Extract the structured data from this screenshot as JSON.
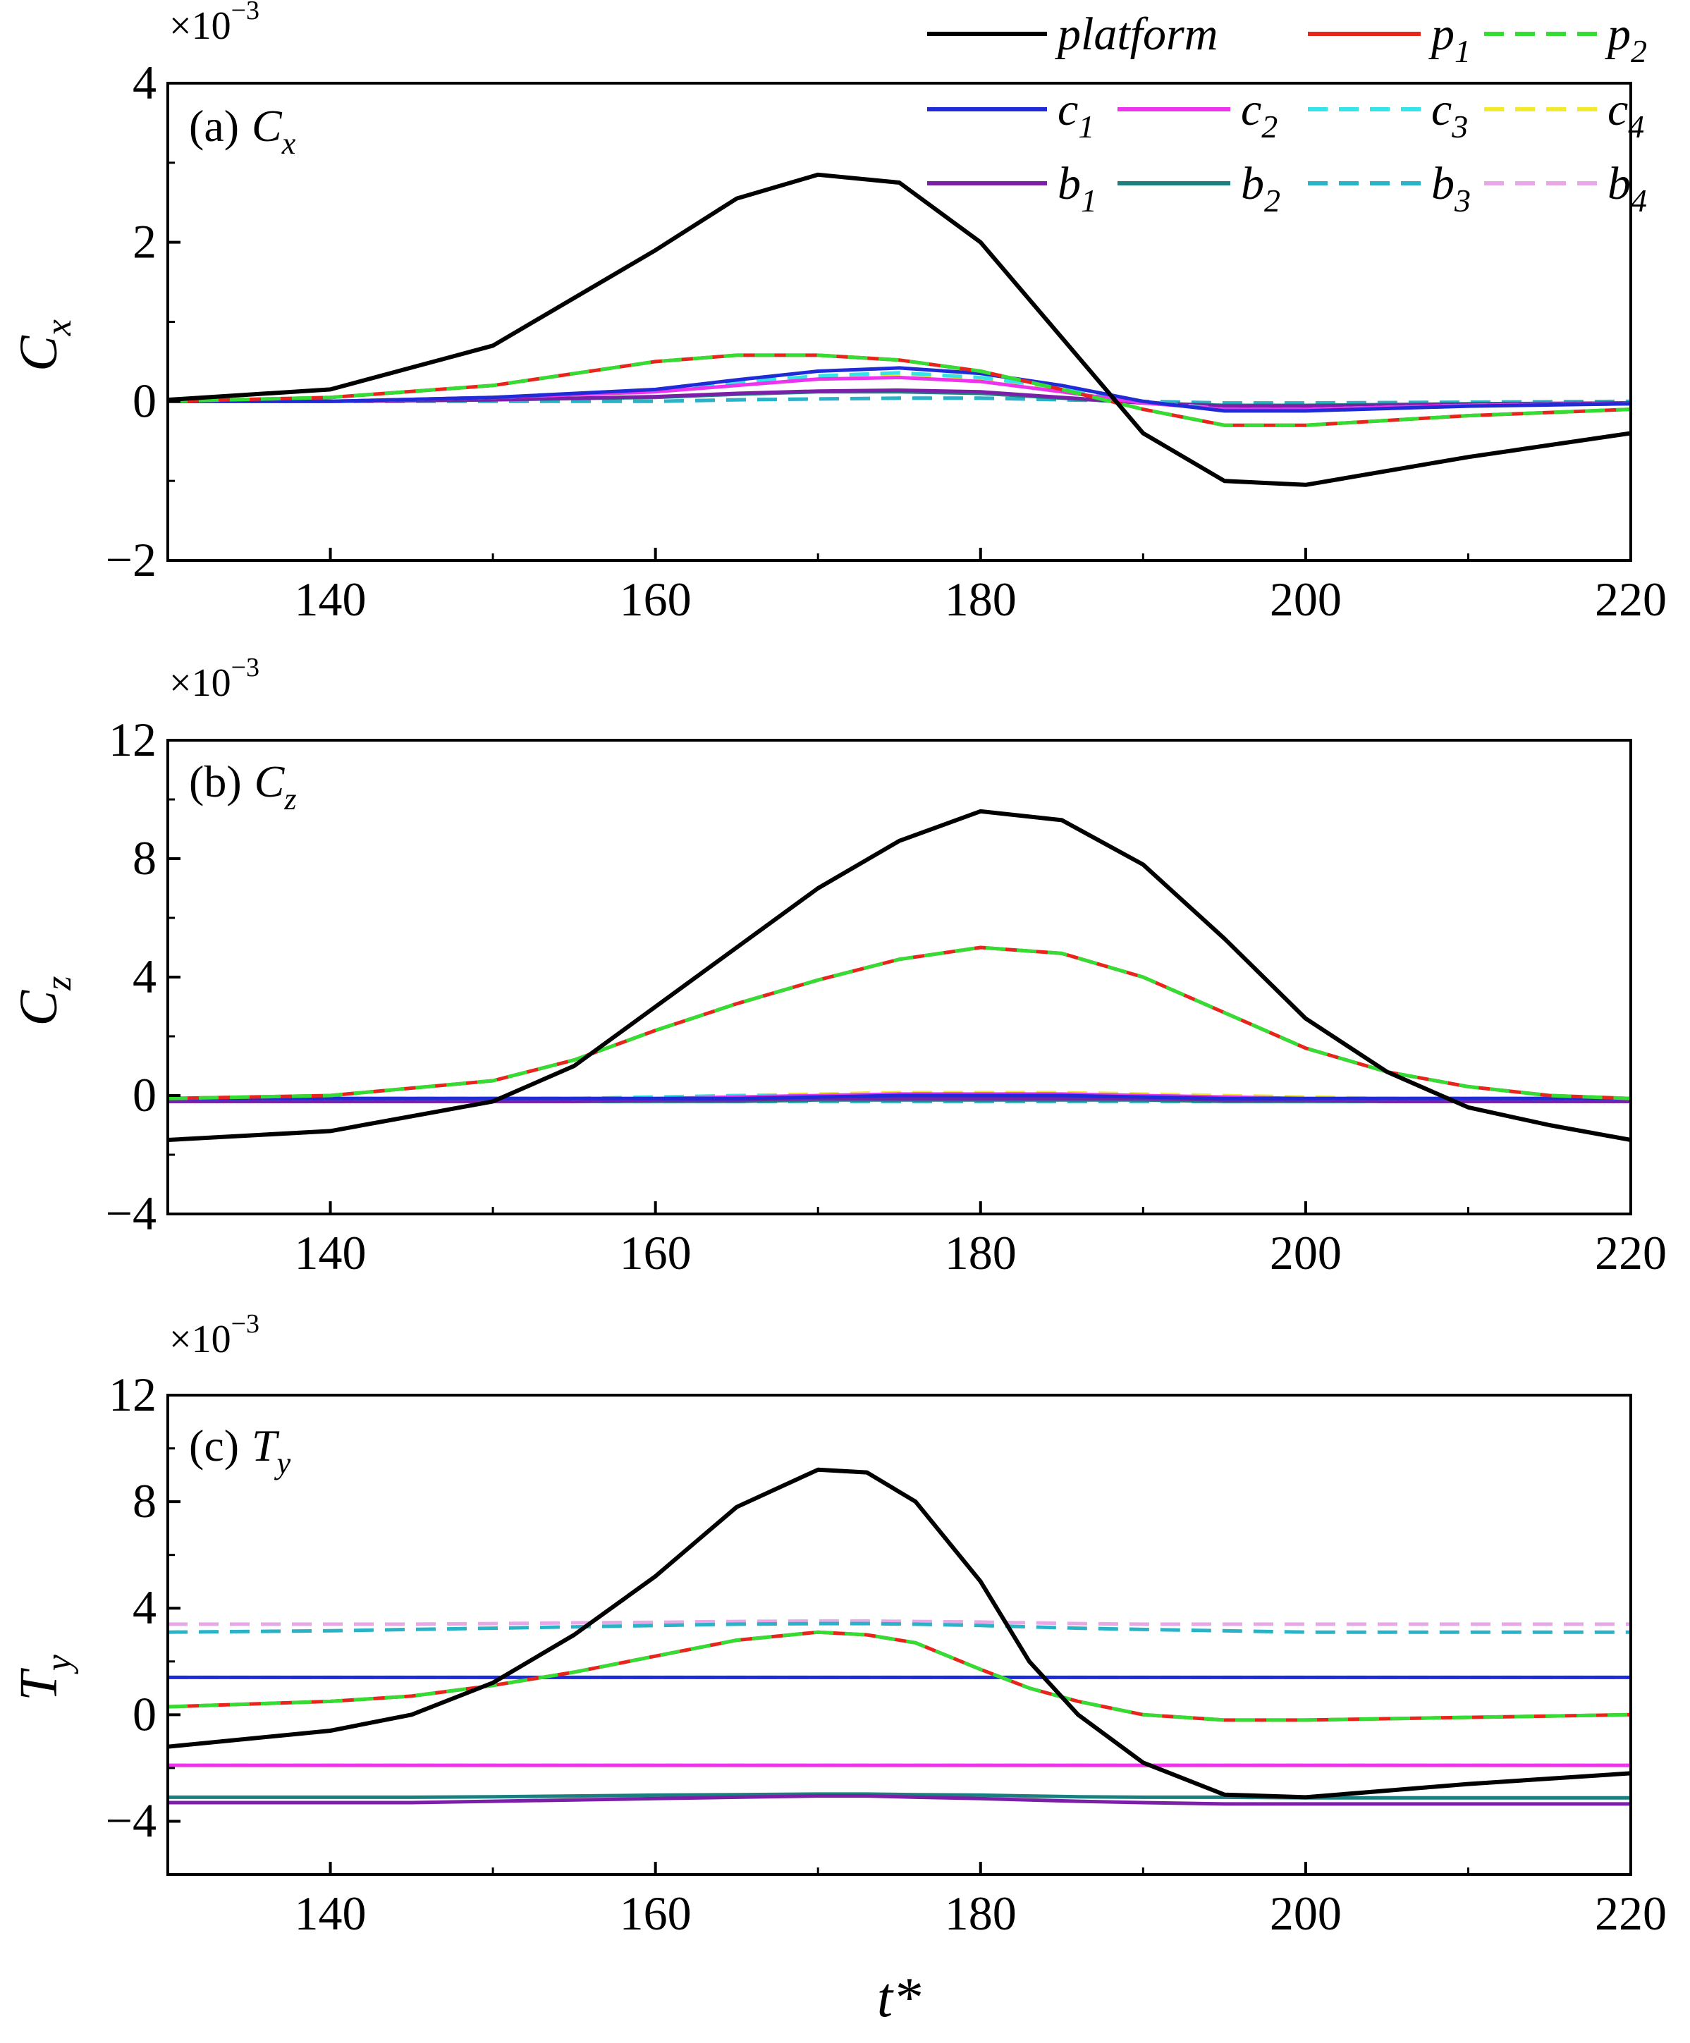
{
  "figure": {
    "xlabel": "t*",
    "legend_entries": [
      {
        "id": "platform",
        "name": "platform",
        "sub": "",
        "color": "#000000",
        "dash": false
      },
      {
        "id": "p1",
        "name": "p",
        "sub": "1",
        "color": "#e8251d",
        "dash": false
      },
      {
        "id": "p2",
        "name": "p",
        "sub": "2",
        "color": "#33dd33",
        "dash": true
      },
      {
        "id": "c1",
        "name": "c",
        "sub": "1",
        "color": "#1f2bd6",
        "dash": false
      },
      {
        "id": "c2",
        "name": "c",
        "sub": "2",
        "color": "#ee33ee",
        "dash": false
      },
      {
        "id": "c3",
        "name": "c",
        "sub": "3",
        "color": "#33e4e8",
        "dash": true
      },
      {
        "id": "c4",
        "name": "c",
        "sub": "4",
        "color": "#f2ea2a",
        "dash": true
      },
      {
        "id": "b1",
        "name": "b",
        "sub": "1",
        "color": "#7b1fa8",
        "dash": false
      },
      {
        "id": "b2",
        "name": "b",
        "sub": "2",
        "color": "#1a7f7f",
        "dash": false
      },
      {
        "id": "b3",
        "name": "b",
        "sub": "3",
        "color": "#2ab3c6",
        "dash": true
      },
      {
        "id": "b4",
        "name": "b",
        "sub": "4",
        "color": "#e8a8e8",
        "dash": true
      }
    ]
  },
  "chart_data": [
    {
      "type": "line",
      "panel_label": "(a)",
      "quantity": "C",
      "quantity_sub": "x",
      "ylabel": "C",
      "ylabel_sub": "x",
      "multiplier_base": "×10",
      "multiplier_exp": "−3",
      "xlim": [
        130,
        220
      ],
      "ylim": [
        -2,
        4
      ],
      "xticks": [
        140,
        160,
        180,
        200,
        220
      ],
      "xtick_labels": [
        "140",
        "160",
        "180",
        "200",
        "220"
      ],
      "yticks": [
        -2,
        0,
        2,
        4
      ],
      "ytick_labels": [
        "−2",
        "0",
        "2",
        "4"
      ],
      "x": [
        130,
        140,
        150,
        160,
        165,
        170,
        175,
        180,
        185,
        190,
        195,
        200,
        210,
        220
      ],
      "series": [
        {
          "name": "platform",
          "values": [
            0.02,
            0.15,
            0.7,
            1.9,
            2.55,
            2.85,
            2.75,
            2.0,
            0.8,
            -0.4,
            -1.0,
            -1.05,
            -0.7,
            -0.4
          ]
        },
        {
          "name": "p1",
          "values": [
            0.0,
            0.05,
            0.2,
            0.5,
            0.58,
            0.58,
            0.52,
            0.38,
            0.15,
            -0.1,
            -0.3,
            -0.3,
            -0.18,
            -0.1
          ]
        },
        {
          "name": "p2",
          "values": [
            0.0,
            0.05,
            0.2,
            0.5,
            0.58,
            0.58,
            0.52,
            0.38,
            0.15,
            -0.1,
            -0.3,
            -0.3,
            -0.18,
            -0.1
          ]
        },
        {
          "name": "c1",
          "values": [
            0.0,
            0.0,
            0.05,
            0.15,
            0.27,
            0.38,
            0.42,
            0.35,
            0.2,
            0.0,
            -0.12,
            -0.12,
            -0.06,
            -0.03
          ]
        },
        {
          "name": "c2",
          "values": [
            0.0,
            0.0,
            0.05,
            0.12,
            0.2,
            0.28,
            0.3,
            0.25,
            0.12,
            -0.02,
            -0.1,
            -0.1,
            -0.05,
            -0.03
          ]
        },
        {
          "name": "c3",
          "values": [
            0.0,
            0.0,
            0.05,
            0.13,
            0.24,
            0.32,
            0.36,
            0.3,
            0.17,
            0.0,
            -0.1,
            -0.1,
            -0.05,
            -0.03
          ]
        },
        {
          "name": "c4",
          "values": [
            0.0,
            0.0,
            0.05,
            0.12,
            0.22,
            0.3,
            0.33,
            0.28,
            0.15,
            0.0,
            -0.1,
            -0.1,
            -0.05,
            -0.03
          ]
        },
        {
          "name": "b1",
          "values": [
            0.0,
            0.0,
            0.02,
            0.06,
            0.1,
            0.13,
            0.14,
            0.12,
            0.05,
            -0.02,
            -0.06,
            -0.06,
            -0.04,
            -0.02
          ]
        },
        {
          "name": "b2",
          "values": [
            0.0,
            0.0,
            0.02,
            0.05,
            0.09,
            0.12,
            0.12,
            0.1,
            0.04,
            -0.02,
            -0.05,
            -0.05,
            -0.03,
            -0.02
          ]
        },
        {
          "name": "b3",
          "values": [
            0.0,
            0.0,
            0.0,
            0.0,
            0.02,
            0.03,
            0.04,
            0.04,
            0.02,
            0.0,
            -0.02,
            -0.02,
            -0.01,
            0.0
          ]
        },
        {
          "name": "b4",
          "values": [
            0.0,
            0.0,
            0.0,
            0.0,
            0.02,
            0.03,
            0.04,
            0.04,
            0.02,
            0.0,
            -0.02,
            -0.02,
            -0.01,
            0.0
          ]
        }
      ]
    },
    {
      "type": "line",
      "panel_label": "(b)",
      "quantity": "C",
      "quantity_sub": "z",
      "ylabel": "C",
      "ylabel_sub": "z",
      "multiplier_base": "×10",
      "multiplier_exp": "−3",
      "xlim": [
        130,
        220
      ],
      "ylim": [
        -4,
        12
      ],
      "xticks": [
        140,
        160,
        180,
        200,
        220
      ],
      "xtick_labels": [
        "140",
        "160",
        "180",
        "200",
        "220"
      ],
      "yticks": [
        -4,
        0,
        4,
        8,
        12
      ],
      "ytick_labels": [
        "−4",
        "0",
        "4",
        "8",
        "12"
      ],
      "x": [
        130,
        140,
        150,
        155,
        160,
        165,
        170,
        175,
        180,
        185,
        190,
        195,
        200,
        205,
        210,
        215,
        220
      ],
      "series": [
        {
          "name": "platform",
          "values": [
            -1.5,
            -1.2,
            -0.2,
            1.0,
            3.0,
            5.0,
            7.0,
            8.6,
            9.6,
            9.3,
            7.8,
            5.3,
            2.6,
            0.8,
            -0.4,
            -1.0,
            -1.5
          ]
        },
        {
          "name": "p1",
          "values": [
            -0.1,
            0.0,
            0.5,
            1.2,
            2.2,
            3.1,
            3.9,
            4.6,
            5.0,
            4.8,
            4.0,
            2.8,
            1.6,
            0.8,
            0.3,
            0.0,
            -0.1
          ]
        },
        {
          "name": "p2",
          "values": [
            -0.1,
            0.0,
            0.5,
            1.2,
            2.2,
            3.1,
            3.9,
            4.6,
            5.0,
            4.8,
            4.0,
            2.8,
            1.6,
            0.8,
            0.3,
            0.0,
            -0.1
          ]
        },
        {
          "name": "c1",
          "values": [
            -0.1,
            -0.1,
            -0.1,
            -0.1,
            -0.1,
            -0.1,
            -0.05,
            0.0,
            0.0,
            0.0,
            -0.05,
            -0.1,
            -0.1,
            -0.1,
            -0.1,
            -0.1,
            -0.1
          ]
        },
        {
          "name": "c2",
          "values": [
            -0.1,
            -0.1,
            -0.1,
            -0.1,
            -0.1,
            -0.05,
            0.0,
            0.05,
            0.05,
            0.05,
            0.0,
            -0.05,
            -0.1,
            -0.1,
            -0.1,
            -0.1,
            -0.1
          ]
        },
        {
          "name": "c3",
          "values": [
            -0.1,
            -0.1,
            -0.1,
            -0.1,
            -0.05,
            0.0,
            0.0,
            0.05,
            0.05,
            0.05,
            0.0,
            -0.05,
            -0.1,
            -0.1,
            -0.1,
            -0.1,
            -0.1
          ]
        },
        {
          "name": "c4",
          "values": [
            -0.1,
            -0.1,
            -0.1,
            -0.1,
            -0.05,
            0.0,
            0.05,
            0.1,
            0.1,
            0.1,
            0.05,
            0.0,
            -0.05,
            -0.1,
            -0.1,
            -0.1,
            -0.1
          ]
        },
        {
          "name": "b1",
          "values": [
            -0.2,
            -0.2,
            -0.2,
            -0.2,
            -0.15,
            -0.15,
            -0.1,
            -0.1,
            -0.1,
            -0.1,
            -0.1,
            -0.15,
            -0.15,
            -0.2,
            -0.2,
            -0.2,
            -0.2
          ]
        },
        {
          "name": "b2",
          "values": [
            -0.2,
            -0.2,
            -0.2,
            -0.2,
            -0.2,
            -0.2,
            -0.15,
            -0.15,
            -0.15,
            -0.15,
            -0.15,
            -0.2,
            -0.2,
            -0.2,
            -0.2,
            -0.2,
            -0.2
          ]
        },
        {
          "name": "b3",
          "values": [
            -0.2,
            -0.2,
            -0.2,
            -0.2,
            -0.2,
            -0.2,
            -0.2,
            -0.2,
            -0.2,
            -0.2,
            -0.2,
            -0.2,
            -0.2,
            -0.2,
            -0.2,
            -0.2,
            -0.2
          ]
        },
        {
          "name": "b4",
          "values": [
            -0.1,
            -0.1,
            -0.1,
            -0.1,
            -0.1,
            -0.1,
            -0.1,
            -0.1,
            -0.1,
            -0.1,
            -0.1,
            -0.1,
            -0.1,
            -0.1,
            -0.1,
            -0.1,
            -0.1
          ]
        }
      ]
    },
    {
      "type": "line",
      "panel_label": "(c)",
      "quantity": "T",
      "quantity_sub": "y",
      "ylabel": "T",
      "ylabel_sub": "y",
      "multiplier_base": "×10",
      "multiplier_exp": "−3",
      "xlim": [
        130,
        220
      ],
      "ylim": [
        -6,
        12
      ],
      "xticks": [
        140,
        160,
        180,
        200,
        220
      ],
      "xtick_labels": [
        "140",
        "160",
        "180",
        "200",
        "220"
      ],
      "yticks": [
        -4,
        0,
        4,
        8,
        12
      ],
      "ytick_labels": [
        "−4",
        "0",
        "4",
        "8",
        "12"
      ],
      "x": [
        130,
        140,
        145,
        150,
        155,
        160,
        165,
        170,
        173,
        176,
        180,
        183,
        186,
        190,
        195,
        200,
        210,
        220
      ],
      "series": [
        {
          "name": "platform",
          "values": [
            -1.2,
            -0.6,
            0.0,
            1.2,
            3.0,
            5.2,
            7.8,
            9.2,
            9.1,
            8.0,
            5.0,
            2.0,
            0.0,
            -1.8,
            -3.0,
            -3.1,
            -2.6,
            -2.2
          ]
        },
        {
          "name": "p1",
          "values": [
            0.3,
            0.5,
            0.7,
            1.1,
            1.6,
            2.2,
            2.8,
            3.1,
            3.0,
            2.7,
            1.7,
            1.0,
            0.5,
            0.0,
            -0.2,
            -0.2,
            -0.1,
            0.0
          ]
        },
        {
          "name": "p2",
          "values": [
            0.3,
            0.5,
            0.7,
            1.1,
            1.6,
            2.2,
            2.8,
            3.1,
            3.0,
            2.7,
            1.7,
            1.0,
            0.5,
            0.0,
            -0.2,
            -0.2,
            -0.1,
            0.0
          ]
        },
        {
          "name": "c1",
          "values": [
            1.4,
            1.4,
            1.4,
            1.4,
            1.4,
            1.4,
            1.4,
            1.4,
            1.4,
            1.4,
            1.4,
            1.4,
            1.4,
            1.4,
            1.4,
            1.4,
            1.4,
            1.4
          ]
        },
        {
          "name": "c2",
          "values": [
            -1.9,
            -1.9,
            -1.9,
            -1.9,
            -1.9,
            -1.9,
            -1.9,
            -1.9,
            -1.9,
            -1.9,
            -1.9,
            -1.9,
            -1.9,
            -1.9,
            -1.9,
            -1.9,
            -1.9,
            -1.9
          ]
        },
        {
          "name": "c3",
          "values": [
            1.4,
            1.4,
            1.4,
            1.4,
            1.4,
            1.4,
            1.4,
            1.4,
            1.4,
            1.4,
            1.4,
            1.4,
            1.4,
            1.4,
            1.4,
            1.4,
            1.4,
            1.4
          ]
        },
        {
          "name": "c4",
          "values": [
            -1.9,
            -1.9,
            -1.9,
            -1.9,
            -1.9,
            -1.9,
            -1.9,
            -1.9,
            -1.9,
            -1.9,
            -1.9,
            -1.9,
            -1.9,
            -1.9,
            -1.9,
            -1.9,
            -1.9,
            -1.9
          ]
        },
        {
          "name": "b1",
          "values": [
            -3.3,
            -3.3,
            -3.3,
            -3.25,
            -3.2,
            -3.15,
            -3.1,
            -3.05,
            -3.05,
            -3.1,
            -3.15,
            -3.2,
            -3.25,
            -3.3,
            -3.35,
            -3.35,
            -3.35,
            -3.35
          ]
        },
        {
          "name": "b2",
          "values": [
            -3.1,
            -3.1,
            -3.1,
            -3.08,
            -3.05,
            -3.02,
            -3.0,
            -2.98,
            -2.98,
            -3.0,
            -3.02,
            -3.05,
            -3.08,
            -3.1,
            -3.1,
            -3.12,
            -3.12,
            -3.12
          ]
        },
        {
          "name": "b3",
          "values": [
            3.1,
            3.15,
            3.2,
            3.25,
            3.3,
            3.35,
            3.4,
            3.42,
            3.42,
            3.4,
            3.35,
            3.3,
            3.25,
            3.2,
            3.15,
            3.1,
            3.1,
            3.1
          ]
        },
        {
          "name": "b4",
          "values": [
            3.4,
            3.4,
            3.4,
            3.42,
            3.45,
            3.47,
            3.5,
            3.52,
            3.52,
            3.5,
            3.48,
            3.45,
            3.42,
            3.4,
            3.4,
            3.4,
            3.4,
            3.4
          ]
        }
      ]
    }
  ]
}
